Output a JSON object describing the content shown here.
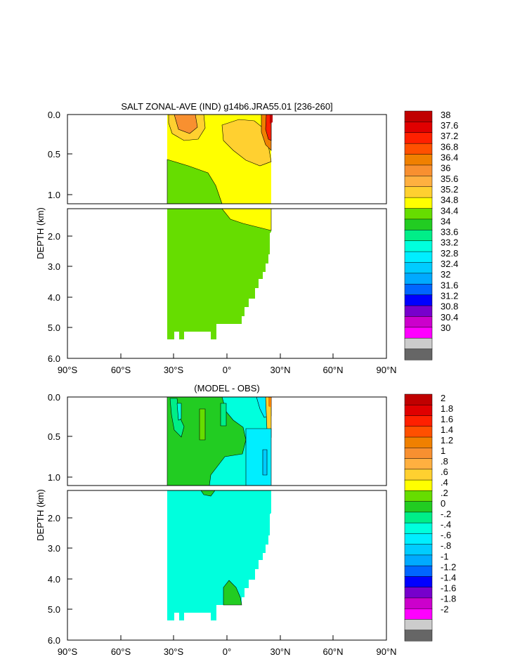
{
  "chart_data": [
    {
      "type": "heatmap",
      "title": "SALT ZONAL-AVE (IND) g14b6.JRA55.01 [236-260]",
      "ylabel": "DEPTH (km)",
      "xlim": [
        -90,
        90
      ],
      "ylim_upper_km": [
        0.0,
        1.1
      ],
      "ylim_lower_km": [
        1.1,
        6.0
      ],
      "upper_depth_ticks": [
        "0.0",
        "0.5",
        "1.0"
      ],
      "lower_depth_ticks": [
        "2.0",
        "3.0",
        "4.0",
        "5.0",
        "6.0"
      ],
      "x_tick_labels": [
        "90°S",
        "60°S",
        "30°S",
        "0°",
        "30°N",
        "60°N",
        "90°N"
      ],
      "colorbar_labels": [
        "38",
        "37.6",
        "37.2",
        "36.8",
        "36.4",
        "36",
        "35.6",
        "35.2",
        "34.8",
        "34.4",
        "34",
        "33.6",
        "33.2",
        "32.8",
        "32.4",
        "32",
        "31.6",
        "31.2",
        "30.8",
        "30.4",
        "30"
      ],
      "colorbar_colors": [
        "#c00000",
        "#e00000",
        "#ff2000",
        "#ff5000",
        "#f08000",
        "#f89030",
        "#ffb040",
        "#ffd030",
        "#ffff00",
        "#66dd00",
        "#22cc22",
        "#00ee88",
        "#00ffdd",
        "#00eeff",
        "#00ccff",
        "#00aaff",
        "#0066ff",
        "#0000ff",
        "#7700cc",
        "#cc00cc",
        "#ff00ff",
        "#cccccc",
        "#666666"
      ]
    },
    {
      "type": "heatmap",
      "title": "(MODEL - OBS)",
      "ylabel": "DEPTH (km)",
      "xlim": [
        -90,
        90
      ],
      "ylim_upper_km": [
        0.0,
        1.1
      ],
      "ylim_lower_km": [
        1.1,
        6.0
      ],
      "upper_depth_ticks": [
        "0.0",
        "0.5",
        "1.0"
      ],
      "lower_depth_ticks": [
        "2.0",
        "3.0",
        "4.0",
        "5.0",
        "6.0"
      ],
      "x_tick_labels": [
        "90°S",
        "60°S",
        "30°S",
        "0°",
        "30°N",
        "60°N",
        "90°N"
      ],
      "colorbar_labels": [
        "2",
        "1.8",
        "1.6",
        "1.4",
        "1.2",
        "1",
        ".8",
        ".6",
        ".4",
        ".2",
        "0",
        "-.2",
        "-.4",
        "-.6",
        "-.8",
        "-1",
        "-1.2",
        "-1.4",
        "-1.6",
        "-1.8",
        "-2"
      ],
      "colorbar_colors": [
        "#c00000",
        "#e00000",
        "#ff2000",
        "#ff5000",
        "#f08000",
        "#f89030",
        "#ffb040",
        "#ffd030",
        "#ffff00",
        "#66dd00",
        "#22cc22",
        "#00ee88",
        "#00ffdd",
        "#00eeff",
        "#00ccff",
        "#00aaff",
        "#0066ff",
        "#0000ff",
        "#7700cc",
        "#cc00cc",
        "#ff00ff",
        "#cccccc",
        "#666666"
      ]
    }
  ]
}
